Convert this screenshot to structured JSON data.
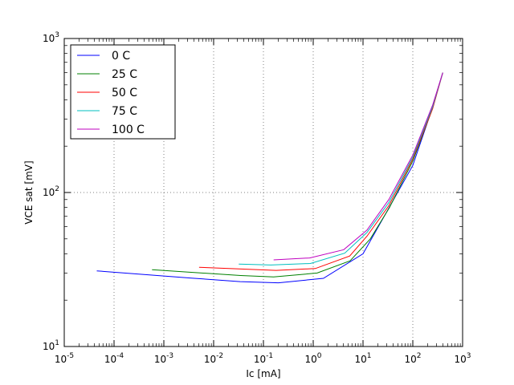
{
  "chart_data": {
    "type": "line",
    "xscale": "log",
    "yscale": "log",
    "xlim": [
      1e-05,
      1000
    ],
    "ylim": [
      10,
      1000
    ],
    "xlabel": "Ic [mA]",
    "ylabel": "VCE sat [mV]",
    "grid": true,
    "legend_position": "top-left",
    "x_ticks": [
      {
        "base": "10",
        "exp": "-5",
        "value": 1e-05
      },
      {
        "base": "10",
        "exp": "-4",
        "value": 0.0001
      },
      {
        "base": "10",
        "exp": "-3",
        "value": 0.001
      },
      {
        "base": "10",
        "exp": "-2",
        "value": 0.01
      },
      {
        "base": "10",
        "exp": "-1",
        "value": 0.1
      },
      {
        "base": "10",
        "exp": "0",
        "value": 1
      },
      {
        "base": "10",
        "exp": "1",
        "value": 10
      },
      {
        "base": "10",
        "exp": "2",
        "value": 100
      },
      {
        "base": "10",
        "exp": "3",
        "value": 1000
      }
    ],
    "y_ticks": [
      {
        "base": "10",
        "exp": "1",
        "value": 10
      },
      {
        "base": "10",
        "exp": "2",
        "value": 100
      },
      {
        "base": "10",
        "exp": "3",
        "value": 1000
      }
    ],
    "series": [
      {
        "name": "0 C",
        "color": "#0000ff",
        "points": [
          [
            4.5e-05,
            31.0
          ],
          [
            0.0036,
            27.8
          ],
          [
            0.034,
            26.4
          ],
          [
            0.2,
            25.9
          ],
          [
            1.6,
            27.7
          ],
          [
            10,
            40
          ],
          [
            30,
            75
          ],
          [
            100,
            150
          ],
          [
            230,
            330
          ],
          [
            400,
            600
          ]
        ]
      },
      {
        "name": "25 C",
        "color": "#008000",
        "points": [
          [
            0.00058,
            31.5
          ],
          [
            0.035,
            28.9
          ],
          [
            0.16,
            28.3
          ],
          [
            1.2,
            30
          ],
          [
            5.5,
            36
          ],
          [
            14,
            50
          ],
          [
            34,
            80
          ],
          [
            100,
            160
          ],
          [
            240,
            340
          ],
          [
            400,
            600
          ]
        ]
      },
      {
        "name": "50 C",
        "color": "#ff0000",
        "points": [
          [
            0.0051,
            32.7
          ],
          [
            0.18,
            31.2
          ],
          [
            1.1,
            32.1
          ],
          [
            5.4,
            38.7
          ],
          [
            12,
            52
          ],
          [
            33,
            82
          ],
          [
            100,
            165
          ],
          [
            250,
            350
          ],
          [
            400,
            600
          ]
        ]
      },
      {
        "name": "75 C",
        "color": "#00bfbf",
        "points": [
          [
            0.032,
            34.3
          ],
          [
            0.14,
            33.8
          ],
          [
            0.88,
            34.6
          ],
          [
            4.3,
            40.4
          ],
          [
            12,
            55
          ],
          [
            33,
            86
          ],
          [
            100,
            170
          ],
          [
            250,
            360
          ],
          [
            400,
            600
          ]
        ]
      },
      {
        "name": "100 C",
        "color": "#bf00bf",
        "points": [
          [
            0.16,
            36.5
          ],
          [
            0.85,
            37.6
          ],
          [
            4.1,
            42.5
          ],
          [
            12,
            57
          ],
          [
            33,
            90
          ],
          [
            100,
            175
          ],
          [
            250,
            370
          ],
          [
            400,
            600
          ]
        ]
      }
    ]
  }
}
